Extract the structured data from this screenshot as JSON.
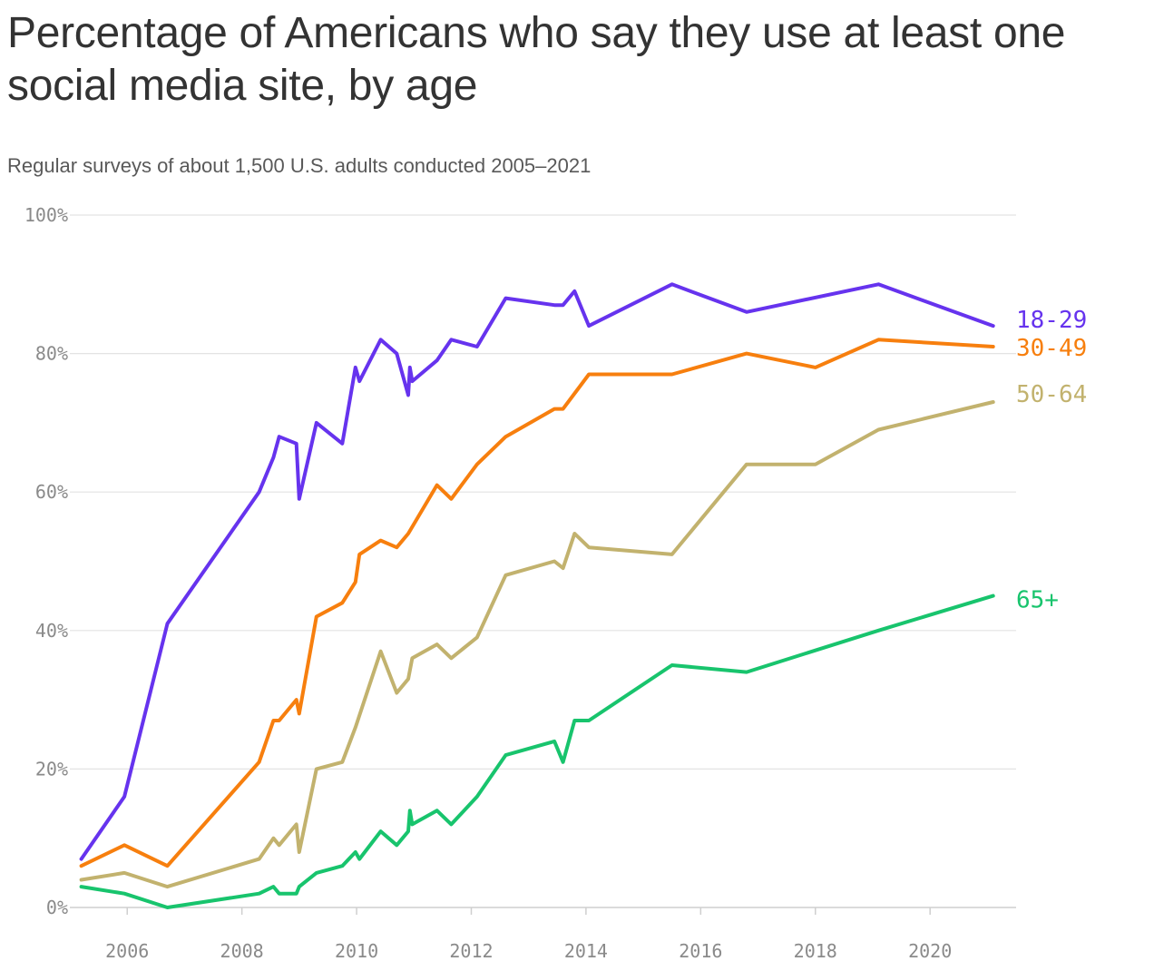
{
  "chart_data": {
    "type": "line",
    "title": "Percentage of Americans who say they use at least one social media site, by age",
    "subtitle": "Regular surveys of about 1,500 U.S. adults conducted 2005–2021",
    "xlabel": "",
    "ylabel": "",
    "xlim": [
      2005.0,
      2021.5
    ],
    "ylim": [
      0,
      100
    ],
    "x_ticks": [
      {
        "value": 2006,
        "label": "2006"
      },
      {
        "value": 2008,
        "label": "2008"
      },
      {
        "value": 2010,
        "label": "2010"
      },
      {
        "value": 2012,
        "label": "2012"
      },
      {
        "value": 2014,
        "label": "2014"
      },
      {
        "value": 2016,
        "label": "2016"
      },
      {
        "value": 2018,
        "label": "2018"
      },
      {
        "value": 2020,
        "label": "2020"
      }
    ],
    "y_ticks": [
      {
        "value": 0,
        "label": "0%"
      },
      {
        "value": 20,
        "label": "20%"
      },
      {
        "value": 40,
        "label": "40%"
      },
      {
        "value": 60,
        "label": "60%"
      },
      {
        "value": 80,
        "label": "80%"
      },
      {
        "value": 100,
        "label": "100%"
      }
    ],
    "grid": true,
    "legend": "direct labels at right end of each line",
    "series": [
      {
        "name": "18-29",
        "color": "#6633ee",
        "points": [
          [
            2005.2,
            7
          ],
          [
            2005.95,
            16
          ],
          [
            2006.7,
            41
          ],
          [
            2008.3,
            60
          ],
          [
            2008.55,
            65
          ],
          [
            2008.65,
            68
          ],
          [
            2008.95,
            67
          ],
          [
            2009.0,
            59
          ],
          [
            2009.3,
            70
          ],
          [
            2009.75,
            67
          ],
          [
            2009.98,
            78
          ],
          [
            2010.05,
            76
          ],
          [
            2010.42,
            82
          ],
          [
            2010.7,
            80
          ],
          [
            2010.9,
            74
          ],
          [
            2010.93,
            78
          ],
          [
            2010.97,
            76
          ],
          [
            2011.4,
            79
          ],
          [
            2011.65,
            82
          ],
          [
            2012.1,
            81
          ],
          [
            2012.6,
            88
          ],
          [
            2013.45,
            87
          ],
          [
            2013.6,
            87
          ],
          [
            2013.8,
            89
          ],
          [
            2014.05,
            84
          ],
          [
            2015.5,
            90
          ],
          [
            2016.8,
            86
          ],
          [
            2019.1,
            90
          ],
          [
            2021.1,
            84
          ]
        ]
      },
      {
        "name": "30-49",
        "color": "#f77f0e",
        "points": [
          [
            2005.2,
            6
          ],
          [
            2005.95,
            9
          ],
          [
            2006.7,
            6
          ],
          [
            2008.3,
            21
          ],
          [
            2008.55,
            27
          ],
          [
            2008.65,
            27
          ],
          [
            2008.95,
            30
          ],
          [
            2009.0,
            28
          ],
          [
            2009.3,
            42
          ],
          [
            2009.75,
            44
          ],
          [
            2009.98,
            47
          ],
          [
            2010.05,
            51
          ],
          [
            2010.42,
            53
          ],
          [
            2010.7,
            52
          ],
          [
            2010.9,
            54
          ],
          [
            2011.4,
            61
          ],
          [
            2011.65,
            59
          ],
          [
            2012.1,
            64
          ],
          [
            2012.6,
            68
          ],
          [
            2013.45,
            72
          ],
          [
            2013.6,
            72
          ],
          [
            2014.05,
            77
          ],
          [
            2015.5,
            77
          ],
          [
            2016.8,
            80
          ],
          [
            2018.0,
            78
          ],
          [
            2019.1,
            82
          ],
          [
            2021.1,
            81
          ]
        ]
      },
      {
        "name": "50-64",
        "color": "#c2b26e",
        "points": [
          [
            2005.2,
            4
          ],
          [
            2005.95,
            5
          ],
          [
            2006.7,
            3
          ],
          [
            2008.3,
            7
          ],
          [
            2008.55,
            10
          ],
          [
            2008.65,
            9
          ],
          [
            2008.95,
            12
          ],
          [
            2009.0,
            8
          ],
          [
            2009.3,
            20
          ],
          [
            2009.75,
            21
          ],
          [
            2009.98,
            26
          ],
          [
            2010.42,
            37
          ],
          [
            2010.7,
            31
          ],
          [
            2010.9,
            33
          ],
          [
            2010.97,
            36
          ],
          [
            2011.4,
            38
          ],
          [
            2011.65,
            36
          ],
          [
            2012.1,
            39
          ],
          [
            2012.6,
            48
          ],
          [
            2013.45,
            50
          ],
          [
            2013.6,
            49
          ],
          [
            2013.8,
            54
          ],
          [
            2014.05,
            52
          ],
          [
            2015.5,
            51
          ],
          [
            2016.8,
            64
          ],
          [
            2018.0,
            64
          ],
          [
            2019.1,
            69
          ],
          [
            2021.1,
            73
          ]
        ]
      },
      {
        "name": "65+",
        "color": "#18c46d",
        "points": [
          [
            2005.2,
            3
          ],
          [
            2005.95,
            2
          ],
          [
            2006.7,
            0
          ],
          [
            2008.3,
            2
          ],
          [
            2008.55,
            3
          ],
          [
            2008.65,
            2
          ],
          [
            2008.95,
            2
          ],
          [
            2009.0,
            3
          ],
          [
            2009.3,
            5
          ],
          [
            2009.75,
            6
          ],
          [
            2009.98,
            8
          ],
          [
            2010.05,
            7
          ],
          [
            2010.42,
            11
          ],
          [
            2010.7,
            9
          ],
          [
            2010.9,
            11
          ],
          [
            2010.93,
            14
          ],
          [
            2010.97,
            12
          ],
          [
            2011.4,
            14
          ],
          [
            2011.65,
            12
          ],
          [
            2012.1,
            16
          ],
          [
            2012.6,
            22
          ],
          [
            2013.45,
            24
          ],
          [
            2013.6,
            21
          ],
          [
            2013.8,
            27
          ],
          [
            2014.05,
            27
          ],
          [
            2015.5,
            35
          ],
          [
            2016.8,
            34
          ],
          [
            2019.1,
            40
          ],
          [
            2021.1,
            45
          ]
        ]
      }
    ]
  }
}
